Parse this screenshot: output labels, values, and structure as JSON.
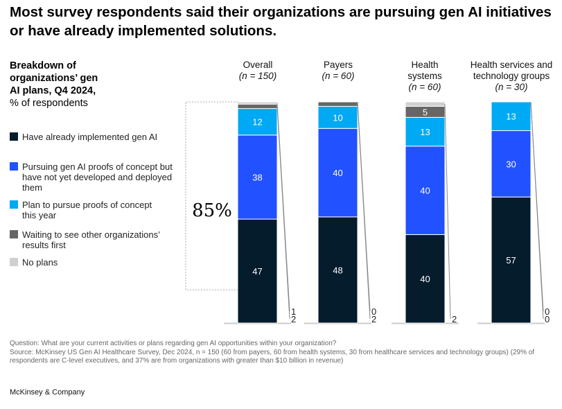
{
  "title": "Most survey respondents said their organizations are pursuing gen AI initiatives or have already implemented solutions.",
  "subtitle": {
    "line1": "Breakdown of organizations’ gen AI plans, Q4 2024,",
    "line2": "% of respondents"
  },
  "bracket_label": "85%",
  "notes": {
    "question": "Question: What are your current activities or plans regarding gen AI opportunities within your organization?",
    "source": "Source: McKinsey US Gen AI Healthcare Survey, Dec 2024, n = 150 (60 from payers, 60 from health systems, 30 from healthcare services and technology groups) (29% of respondents are C-level executives, and 37% are from organizations with greater than $10 billion in revenue)"
  },
  "brand": "McKinsey & Company",
  "chart_data": {
    "type": "bar",
    "stacked": true,
    "title": "Breakdown of organizations’ gen AI plans, Q4 2024, % of respondents",
    "ylim": [
      0,
      100
    ],
    "categories": [
      "Overall",
      "Payers",
      "Health systems",
      "Health services and technology groups"
    ],
    "category_n": [
      "(n = 150)",
      "(n = 60)",
      "(n = 60)",
      "(n = 30)"
    ],
    "series": [
      {
        "name": "Have already implemented gen AI",
        "color": "#051c2c",
        "values": [
          47,
          48,
          40,
          57
        ]
      },
      {
        "name": "Pursuing gen AI proofs of concept but have not yet developed and deployed them",
        "color": "#2251ff",
        "values": [
          38,
          40,
          40,
          30
        ]
      },
      {
        "name": "Plan to pursue proofs of concept this year",
        "color": "#00a9f4",
        "values": [
          12,
          10,
          13,
          13
        ]
      },
      {
        "name": "Waiting to see other organizations’ results first",
        "color": "#666666",
        "values": [
          2,
          2,
          5,
          0
        ]
      },
      {
        "name": "No plans",
        "color": "#d0d0d0",
        "values": [
          1,
          0,
          2,
          0
        ]
      }
    ]
  }
}
